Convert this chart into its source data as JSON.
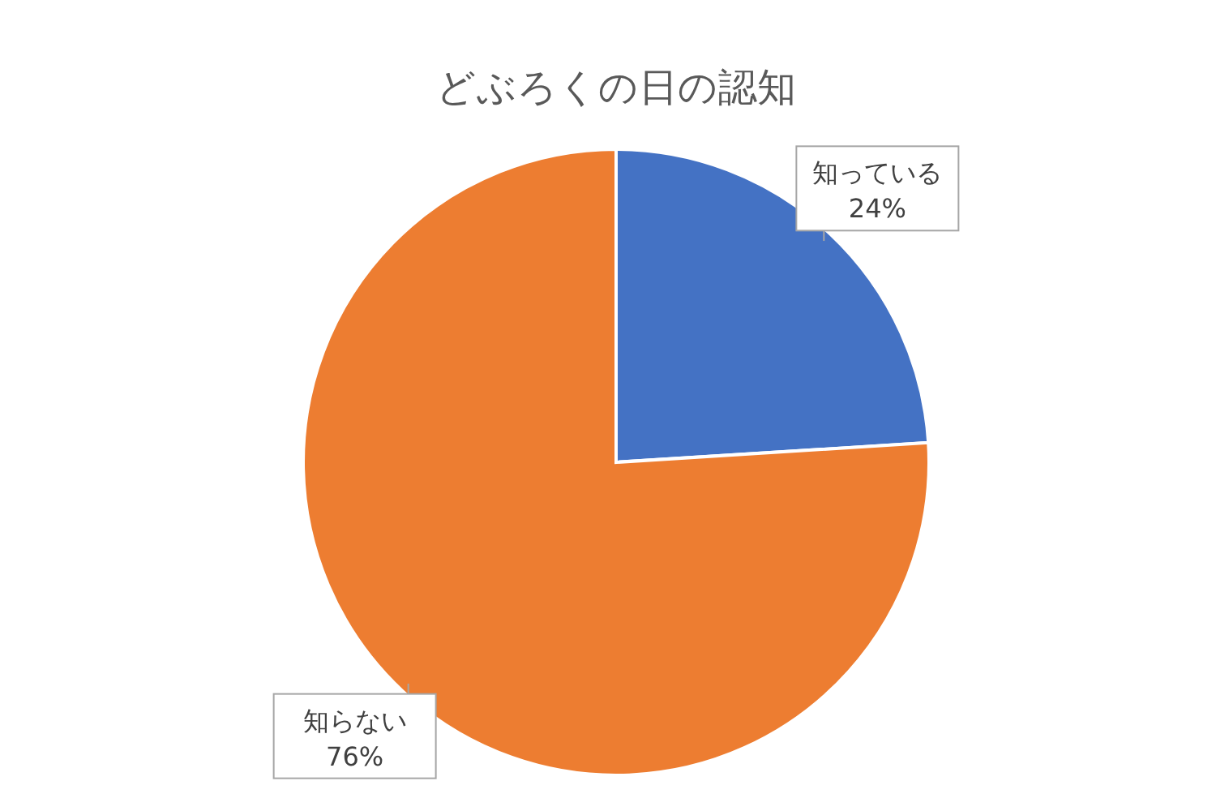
{
  "chart_data": {
    "type": "pie",
    "title": "どぶろくの日の認知",
    "categories": [
      "知っている",
      "知らない"
    ],
    "values": [
      24,
      76
    ],
    "colors": [
      "#4472c4",
      "#ed7d31"
    ],
    "value_labels": [
      "24%",
      "76%"
    ]
  }
}
